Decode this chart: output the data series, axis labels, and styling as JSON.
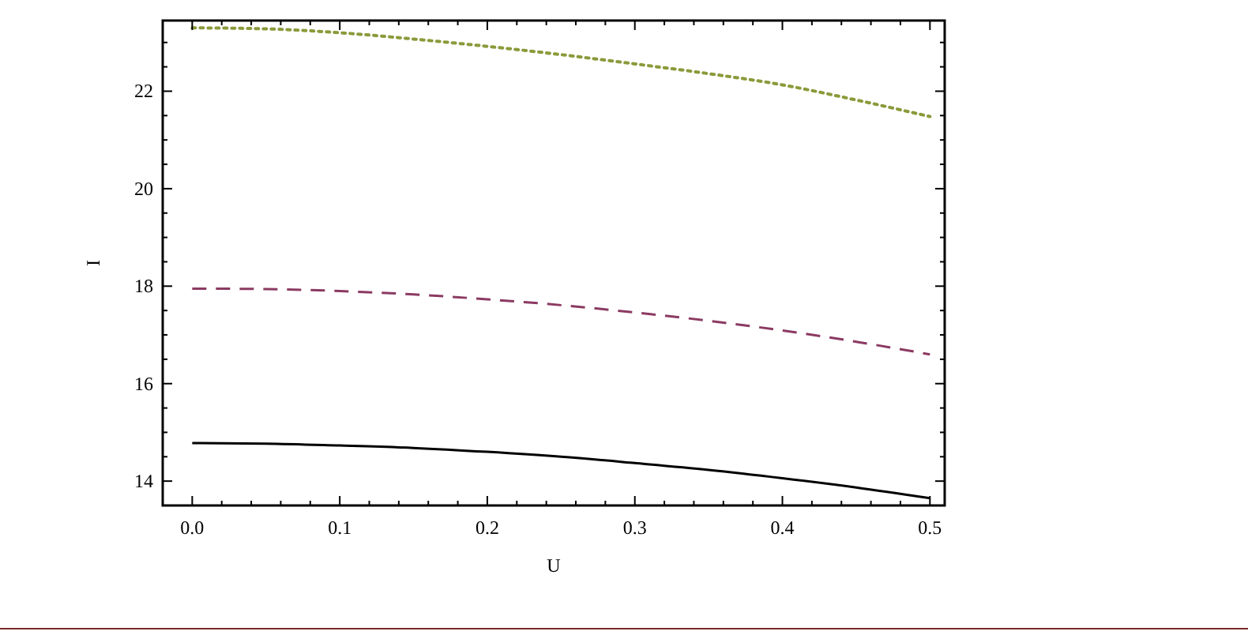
{
  "chart_data": {
    "type": "line",
    "xlabel": "U",
    "ylabel": "I",
    "x": [
      0,
      0.05,
      0.1,
      0.15,
      0.2,
      0.25,
      0.3,
      0.35,
      0.4,
      0.45,
      0.5
    ],
    "series": [
      {
        "color": "#8a9a3a",
        "line_style": "dotted",
        "values": [
          23.3,
          23.28,
          23.2,
          23.07,
          22.92,
          22.75,
          22.56,
          22.36,
          22.13,
          21.82,
          21.48
        ]
      },
      {
        "color": "#8b3a62",
        "line_style": "dashed",
        "values": [
          17.95,
          17.94,
          17.9,
          17.83,
          17.73,
          17.61,
          17.46,
          17.29,
          17.09,
          16.86,
          16.6
        ]
      },
      {
        "color": "#000000",
        "line_style": "solid",
        "values": [
          14.78,
          14.77,
          14.73,
          14.68,
          14.6,
          14.5,
          14.37,
          14.23,
          14.06,
          13.87,
          13.65
        ]
      }
    ],
    "xlim": [
      -0.02,
      0.51
    ],
    "ylim": [
      13.5,
      23.45
    ],
    "xticks": [
      {
        "value": 0,
        "label": "0.0"
      },
      {
        "value": 0.02,
        "label": null
      },
      {
        "value": 0.04,
        "label": null
      },
      {
        "value": 0.06,
        "label": null
      },
      {
        "value": 0.08,
        "label": null
      },
      {
        "value": 0.1,
        "label": "0.1"
      },
      {
        "value": 0.12,
        "label": null
      },
      {
        "value": 0.14,
        "label": null
      },
      {
        "value": 0.16,
        "label": null
      },
      {
        "value": 0.18,
        "label": null
      },
      {
        "value": 0.2,
        "label": "0.2"
      },
      {
        "value": 0.22,
        "label": null
      },
      {
        "value": 0.24,
        "label": null
      },
      {
        "value": 0.26,
        "label": null
      },
      {
        "value": 0.28,
        "label": null
      },
      {
        "value": 0.3,
        "label": "0.3"
      },
      {
        "value": 0.32,
        "label": null
      },
      {
        "value": 0.34,
        "label": null
      },
      {
        "value": 0.36,
        "label": null
      },
      {
        "value": 0.38,
        "label": null
      },
      {
        "value": 0.4,
        "label": "0.4"
      },
      {
        "value": 0.42,
        "label": null
      },
      {
        "value": 0.44,
        "label": null
      },
      {
        "value": 0.46,
        "label": null
      },
      {
        "value": 0.48,
        "label": null
      },
      {
        "value": 0.5,
        "label": "0.5"
      }
    ],
    "yticks": [
      {
        "value": 13.5,
        "label": null
      },
      14,
      {
        "value": 14.5,
        "label": null
      },
      {
        "value": 15,
        "label": null
      },
      {
        "value": 15.5,
        "label": null
      },
      16,
      {
        "value": 16.5,
        "label": null
      },
      {
        "value": 17,
        "label": null
      },
      {
        "value": 17.5,
        "label": null
      },
      18,
      {
        "value": 18.5,
        "label": null
      },
      {
        "value": 19,
        "label": null
      },
      {
        "value": 19.5,
        "label": null
      },
      20,
      {
        "value": 20.5,
        "label": null
      },
      {
        "value": 21,
        "label": null
      },
      {
        "value": 21.5,
        "label": null
      },
      22,
      {
        "value": 22.5,
        "label": null
      },
      {
        "value": 23,
        "label": null
      }
    ],
    "tick_labels": "xy"
  }
}
